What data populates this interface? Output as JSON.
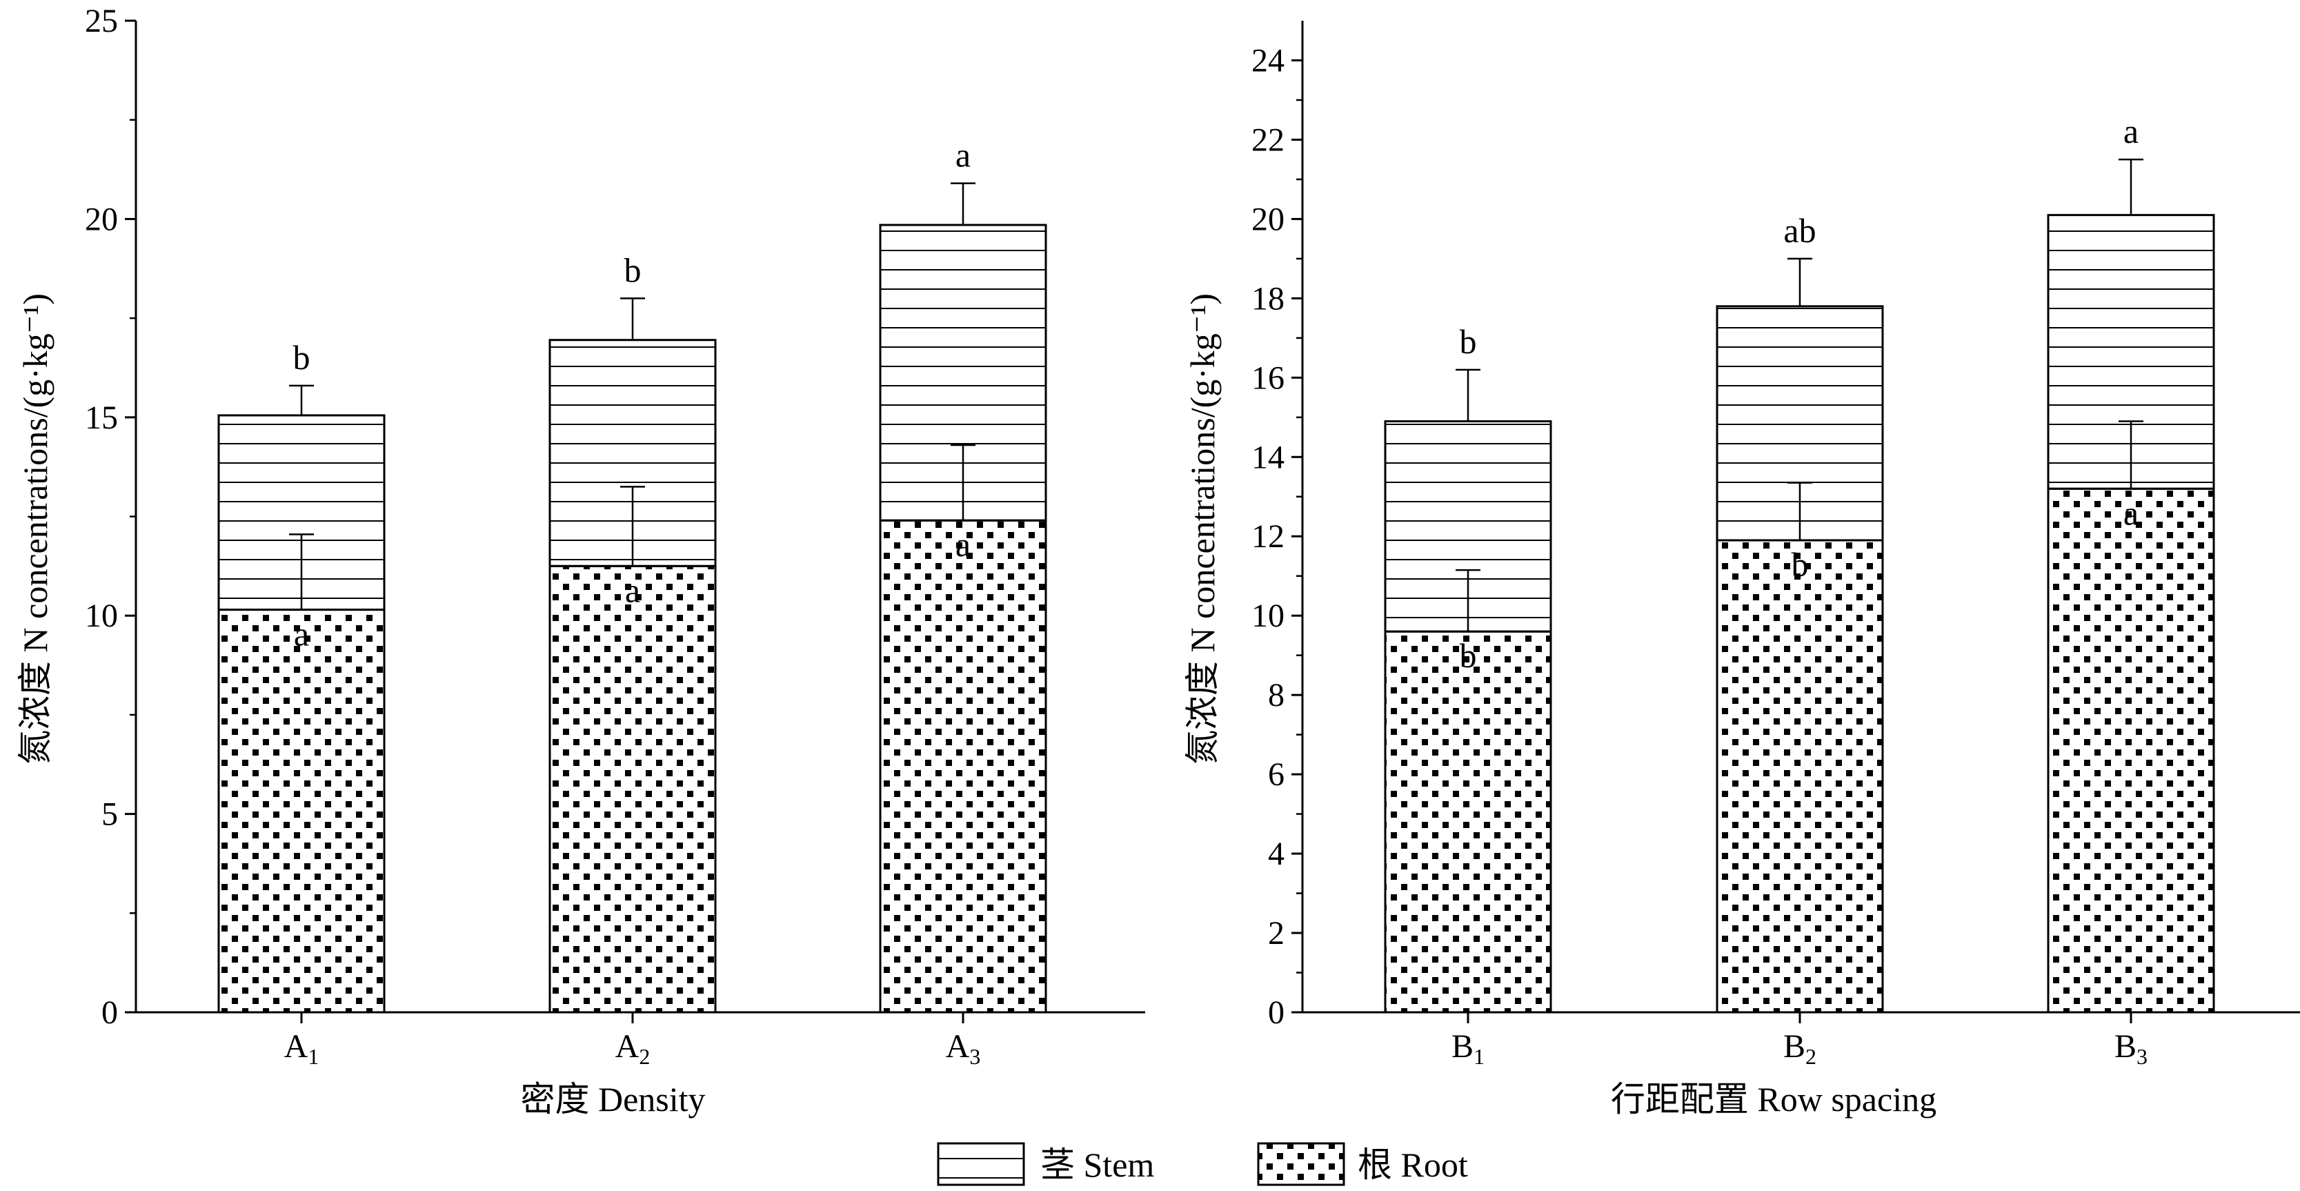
{
  "legend": {
    "stem_label": "茎 Stem",
    "root_label": "根 Root",
    "placement": "bottom-center"
  },
  "chart_data": [
    {
      "type": "bar",
      "stacked": true,
      "xlabel": "密度 Density",
      "ylabel": "氮浓度 N concentrations/(g·kg⁻¹)",
      "categories": [
        {
          "base": "A",
          "sub": "1"
        },
        {
          "base": "A",
          "sub": "2"
        },
        {
          "base": "A",
          "sub": "3"
        }
      ],
      "ylim": [
        0,
        25
      ],
      "yticks": [
        0,
        5,
        10,
        15,
        20,
        25
      ],
      "grid": false,
      "series": [
        {
          "name": "根 Root",
          "values": [
            10.15,
            11.25,
            12.4
          ],
          "errors": [
            1.9,
            2.0,
            1.9
          ],
          "labels": [
            "a",
            "a",
            "a"
          ]
        },
        {
          "name": "茎 Stem",
          "values": [
            4.9,
            5.7,
            7.45
          ],
          "errors": [
            0.75,
            1.05,
            1.05
          ],
          "labels": [
            "b",
            "b",
            "a"
          ]
        }
      ]
    },
    {
      "type": "bar",
      "stacked": true,
      "xlabel": "行距配置 Row spacing",
      "ylabel": "氮浓度 N concentrations/(g·kg⁻¹)",
      "categories": [
        {
          "base": "B",
          "sub": "1"
        },
        {
          "base": "B",
          "sub": "2"
        },
        {
          "base": "B",
          "sub": "3"
        }
      ],
      "ylim": [
        0,
        25
      ],
      "yticks": [
        0,
        2,
        4,
        6,
        8,
        10,
        12,
        14,
        16,
        18,
        20,
        22,
        24
      ],
      "grid": false,
      "series": [
        {
          "name": "根 Root",
          "values": [
            9.6,
            11.9,
            13.2
          ],
          "errors": [
            1.55,
            1.45,
            1.7
          ],
          "labels": [
            "b",
            "b",
            "a"
          ]
        },
        {
          "name": "茎 Stem",
          "values": [
            5.3,
            5.9,
            6.9
          ],
          "errors": [
            1.3,
            1.2,
            1.4
          ],
          "labels": [
            "b",
            "ab",
            "a"
          ]
        }
      ]
    }
  ]
}
